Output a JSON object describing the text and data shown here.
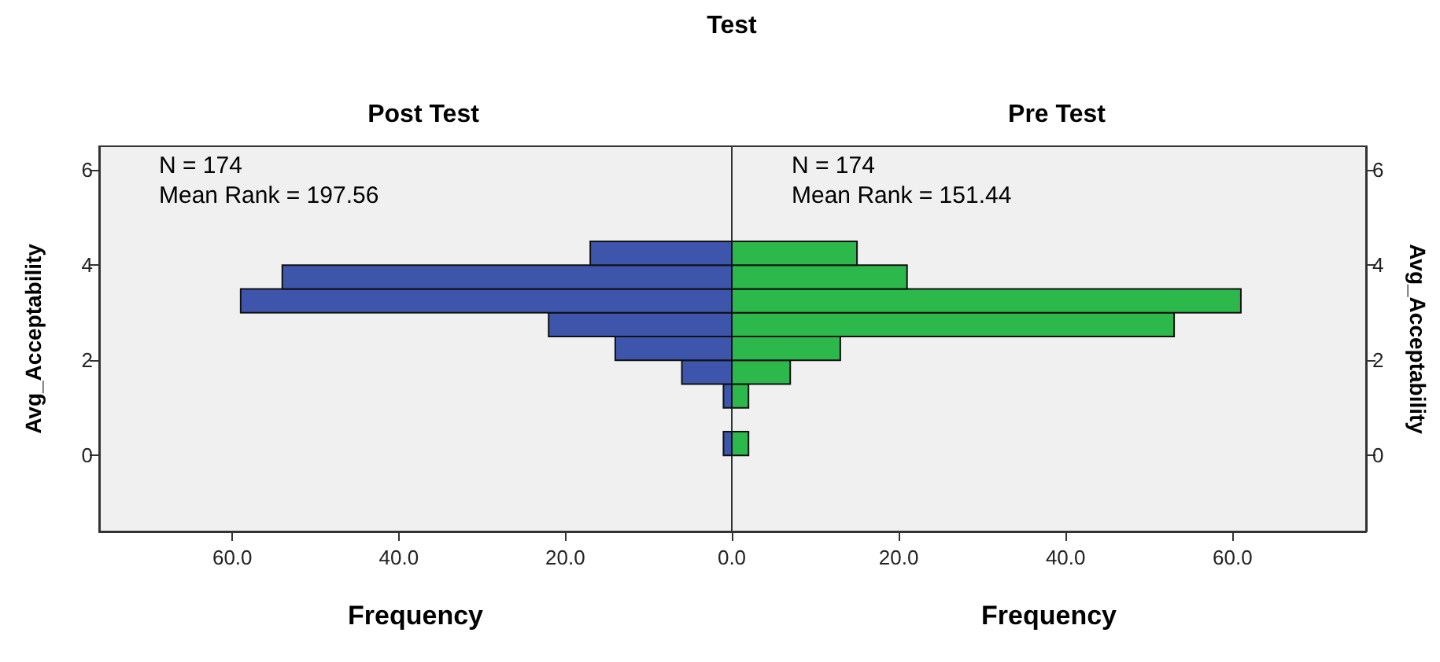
{
  "chart_data": [
    {
      "type": "histogram",
      "orientation": "horizontal",
      "title": "Test",
      "subtitle": "Post Test",
      "xlabel": "Frequency",
      "ylabel": "Avg_Acceptability",
      "annotations": [
        "N = 174",
        "Mean Rank = 197.56"
      ],
      "bins": [
        0,
        0.5,
        1,
        1.5,
        2,
        2.5,
        3,
        3.5,
        4,
        4.5
      ],
      "values": [
        1,
        0,
        1,
        6,
        14,
        22,
        59,
        54,
        17
      ],
      "color": "#3d55ab",
      "xlim": [
        76,
        0
      ],
      "xticks": [
        {
          "value": 60,
          "label": "60.0"
        },
        {
          "value": 40,
          "label": "40.0"
        },
        {
          "value": 20,
          "label": "20.0"
        },
        {
          "value": 0,
          "label": "0.0"
        }
      ],
      "ylim": [
        -1.6,
        6.5
      ],
      "yticks": [
        0,
        2,
        4,
        6
      ],
      "grid": false
    },
    {
      "type": "histogram",
      "orientation": "horizontal",
      "subtitle": "Pre Test",
      "xlabel": "Frequency",
      "ylabel": "Avg_Acceptability",
      "annotations": [
        "N = 174",
        "Mean Rank = 151.44"
      ],
      "bins": [
        0,
        0.5,
        1,
        1.5,
        2,
        2.5,
        3,
        3.5,
        4,
        4.5
      ],
      "values": [
        2,
        0,
        2,
        7,
        13,
        53,
        61,
        21,
        15
      ],
      "color": "#2db84b",
      "xlim": [
        0,
        76
      ],
      "xticks": [
        {
          "value": 0,
          "label": null
        },
        {
          "value": 20,
          "label": "20.0"
        },
        {
          "value": 40,
          "label": "40.0"
        },
        {
          "value": 60,
          "label": "60.0"
        }
      ],
      "ylim": [
        -1.6,
        6.5
      ],
      "yticks": [
        0,
        2,
        4,
        6
      ],
      "grid": false
    }
  ]
}
